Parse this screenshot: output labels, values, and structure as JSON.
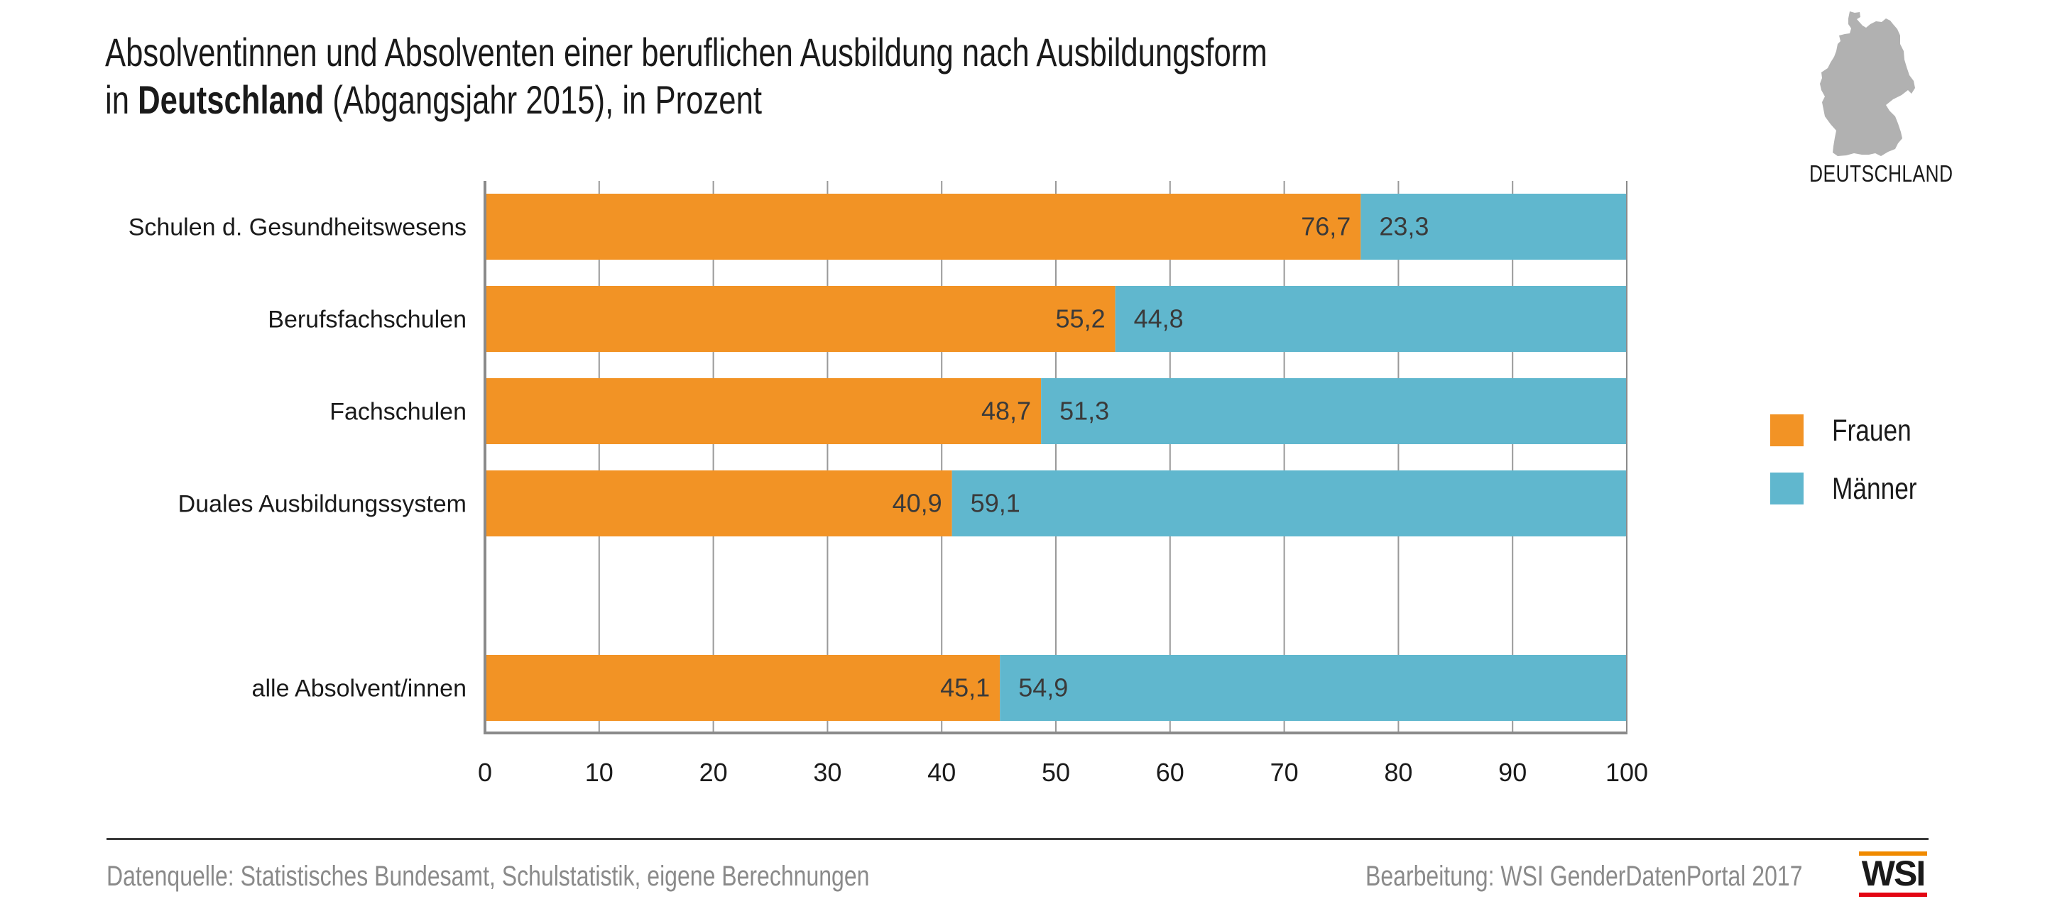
{
  "header": {
    "title_line1": "Absolventinnen und Absolventen einer beruflichen Ausbildung nach Ausbildungsform",
    "title_line2_prefix": "in ",
    "title_line2_bold": "Deutschland",
    "title_line2_suffix": " (Abgangsjahr 2015), in Prozent"
  },
  "map": {
    "icon": "germany-map-icon",
    "label": "DEUTSCHLAND",
    "color": "#B1B1B1"
  },
  "legend": {
    "items": [
      {
        "label": "Frauen",
        "color": "#F29325"
      },
      {
        "label": "Männer",
        "color": "#60B7CE"
      }
    ]
  },
  "footer": {
    "source": "Datenquelle: Statistisches Bundesamt, Schulstatistik, eigene Berechnungen",
    "credit": "Bearbeitung: WSI GenderDatenPortal 2017",
    "logo_text": "WSI"
  },
  "chart_data": {
    "type": "bar",
    "orientation": "horizontal",
    "stacked": true,
    "title": "Absolventinnen und Absolventen einer beruflichen Ausbildung nach Ausbildungsform in Deutschland (Abgangsjahr 2015), in Prozent",
    "xlabel": "",
    "ylabel": "",
    "xlim": [
      0,
      100
    ],
    "xticks": [
      0,
      10,
      20,
      30,
      40,
      50,
      60,
      70,
      80,
      90,
      100
    ],
    "grid": "vertical",
    "legend_position": "right",
    "decimal_separator": ",",
    "categories": [
      "Schulen d. Gesundheitswesens",
      "Berufsfachschulen",
      "Fachschulen",
      "Duales Ausbildungssystem",
      "",
      "alle Absolvent/innen"
    ],
    "series": [
      {
        "name": "Frauen",
        "color": "#F29325",
        "values": [
          76.7,
          55.2,
          48.7,
          40.9,
          null,
          45.1
        ]
      },
      {
        "name": "Männer",
        "color": "#60B7CE",
        "values": [
          23.3,
          44.8,
          51.3,
          59.1,
          null,
          54.9
        ]
      }
    ],
    "label_color": "#3a3a3a",
    "grid_color": "#9a9a9a",
    "axis_color": "#8a8a8a"
  }
}
